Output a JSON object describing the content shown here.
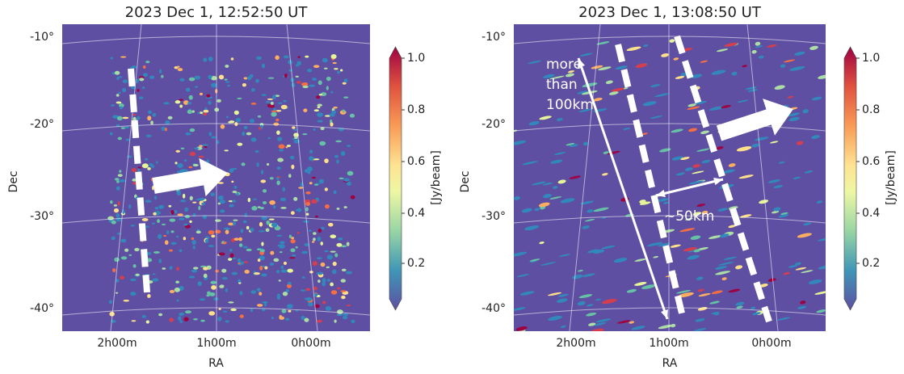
{
  "panels": [
    {
      "title": "2023 Dec 1, 12:52:50 UT",
      "x_label": "RA",
      "y_label": "Dec",
      "dec_ticks": [
        "-10°",
        "-20°",
        "-30°",
        "-40°"
      ],
      "ra_ticks": [
        "2h00m",
        "1h00m",
        "0h00m"
      ],
      "colorbar": {
        "label": "[Jy/beam]",
        "ticks": [
          "1.0",
          "0.8",
          "0.6",
          "0.4",
          "0.2"
        ]
      }
    },
    {
      "title": "2023 Dec 1, 13:08:50 UT",
      "x_label": "RA",
      "y_label": "Dec",
      "dec_ticks": [
        "-10°",
        "-20°",
        "-30°",
        "-40°"
      ],
      "ra_ticks": [
        "2h00m",
        "1h00m",
        "0h00m"
      ],
      "colorbar": {
        "label": "[Jy/beam]",
        "ticks": [
          "1.0",
          "0.8",
          "0.6",
          "0.4",
          "0.2"
        ]
      },
      "annotations": [
        "more",
        "than",
        "100km",
        "~50km"
      ]
    }
  ]
}
